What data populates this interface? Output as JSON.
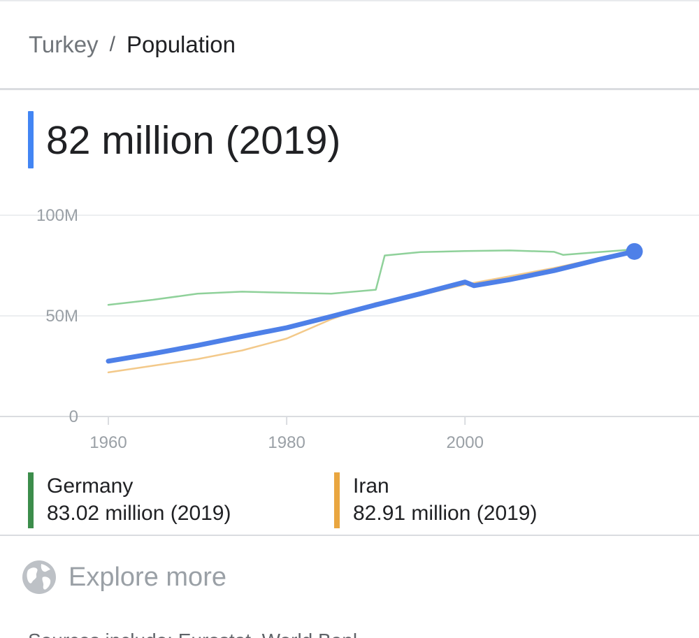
{
  "breadcrumb": {
    "parent": "Turkey",
    "separator": "/",
    "current": "Population"
  },
  "headline": "82 million (2019)",
  "colors": {
    "accent": "#4285f4",
    "turkey": "#4e80e8",
    "germany": "#3c8d4b",
    "germany_line": "#8fd19a",
    "iran": "#e9a640",
    "iran_line": "#f3c98a"
  },
  "chart_data": {
    "type": "line",
    "y_ticks": [
      "100M",
      "50M",
      "0"
    ],
    "x_ticks": [
      "1960",
      "1980",
      "2000"
    ],
    "ylim": [
      0,
      100000000
    ],
    "xlim": [
      1960,
      2020.6
    ],
    "grid": true,
    "series": [
      {
        "name": "Germany",
        "x": [
          1960,
          1965,
          1970,
          1975,
          1980,
          1985,
          1990,
          1991,
          1995,
          2000,
          2005,
          2010,
          2011,
          2015,
          2019
        ],
        "values": [
          55.5,
          58.0,
          61.0,
          62.0,
          61.5,
          61.0,
          63.0,
          80.0,
          81.7,
          82.2,
          82.5,
          81.8,
          80.3,
          81.7,
          83.02
        ]
      },
      {
        "name": "Iran",
        "x": [
          1960,
          1965,
          1970,
          1975,
          1980,
          1985,
          1990,
          1995,
          2000,
          2005,
          2010,
          2015,
          2019
        ],
        "values": [
          21.9,
          25.2,
          28.5,
          32.8,
          38.7,
          48.3,
          56.4,
          60.3,
          65.6,
          69.7,
          73.8,
          78.5,
          82.91
        ]
      },
      {
        "name": "Turkey",
        "x": [
          1960,
          1965,
          1970,
          1975,
          1980,
          1985,
          1990,
          1995,
          2000,
          2001,
          2005,
          2010,
          2015,
          2019
        ],
        "values": [
          27.5,
          31.2,
          35.3,
          39.8,
          44.1,
          49.7,
          55.5,
          61.0,
          66.8,
          65.0,
          68.0,
          72.5,
          78.0,
          82.0
        ]
      }
    ]
  },
  "legend": [
    {
      "name": "Germany",
      "value": "83.02 million (2019)"
    },
    {
      "name": "Iran",
      "value": "82.91 million (2019)"
    }
  ],
  "explore": {
    "icon": "globe-icon",
    "label": "Explore more"
  },
  "sources_text": "Sources include: Eurostat, World Bank"
}
